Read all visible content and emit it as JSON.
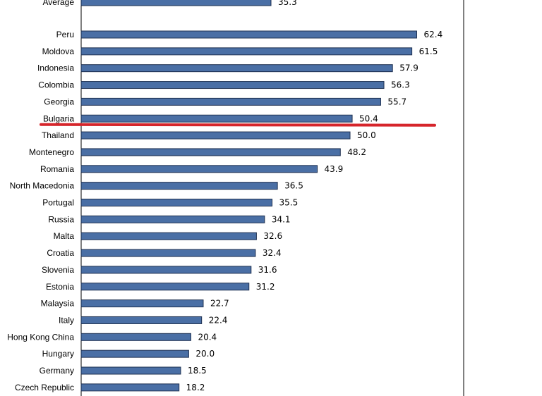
{
  "chart_data": {
    "type": "bar",
    "orientation": "horizontal",
    "categories": [
      "Average",
      "Peru",
      "Moldova",
      "Indonesia",
      "Colombia",
      "Georgia",
      "Bulgaria",
      "Thailand",
      "Montenegro",
      "Romania",
      "North Macedonia",
      "Portugal",
      "Russia",
      "Malta",
      "Croatia",
      "Slovenia",
      "Estonia",
      "Malaysia",
      "Italy",
      "Hong Kong China",
      "Hungary",
      "Germany",
      "Czech Republic"
    ],
    "values": [
      35.3,
      62.4,
      61.5,
      57.9,
      56.3,
      55.7,
      50.4,
      50.0,
      48.2,
      43.9,
      36.5,
      35.5,
      34.1,
      32.6,
      32.4,
      31.6,
      31.2,
      22.7,
      22.4,
      20.4,
      20.0,
      18.5,
      18.2
    ],
    "value_labels": [
      "35.3",
      "62.4",
      "61.5",
      "57.9",
      "56.3",
      "55.7",
      "50.4",
      "50.0",
      "48.2",
      "43.9",
      "36.5",
      "35.5",
      "34.1",
      "32.6",
      "32.4",
      "31.6",
      "31.2",
      "22.7",
      "22.4",
      "20.4",
      "20.0",
      "18.5",
      "18.2"
    ],
    "title": "",
    "xlabel": "",
    "ylabel": "",
    "xlim": [
      0,
      72
    ],
    "grid": false,
    "legend": "none",
    "bar_color": "#4a6fa5",
    "bar_edge_color": "#1e3050",
    "highlight_line": {
      "after_category": "Bulgaria",
      "color": "#d6252b"
    }
  }
}
